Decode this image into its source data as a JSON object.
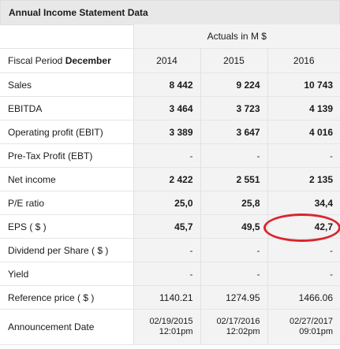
{
  "title": "Annual Income Statement Data",
  "actuals_label": "Actuals in M $",
  "fiscal_label_prefix": "Fiscal Period",
  "fiscal_label_month": "December",
  "years": [
    "2014",
    "2015",
    "2016"
  ],
  "rows": [
    {
      "label": "Sales",
      "values": [
        "8 442",
        "9 224",
        "10 743"
      ]
    },
    {
      "label": "EBITDA",
      "values": [
        "3 464",
        "3 723",
        "4 139"
      ]
    },
    {
      "label": "Operating profit (EBIT)",
      "values": [
        "3 389",
        "3 647",
        "4 016"
      ]
    },
    {
      "label": "Pre-Tax Profit (EBT)",
      "values": [
        "-",
        "-",
        "-"
      ]
    },
    {
      "label": "Net income",
      "values": [
        "2 422",
        "2 551",
        "2 135"
      ]
    },
    {
      "label": "P/E ratio",
      "values": [
        "25,0",
        "25,8",
        "34,4"
      ]
    },
    {
      "label": "EPS ( $ )",
      "values": [
        "45,7",
        "49,5",
        "42,7"
      ]
    },
    {
      "label": "Dividend per Share ( $ )",
      "values": [
        "-",
        "-",
        "-"
      ]
    },
    {
      "label": "Yield",
      "values": [
        "-",
        "-",
        "-"
      ]
    },
    {
      "label": "Reference price ( $ )",
      "values": [
        "1140.21",
        "1274.95",
        "1466.06"
      ]
    }
  ],
  "announcement": {
    "label": "Announcement Date",
    "dates": [
      {
        "date": "02/19/2015",
        "time": "12:01pm"
      },
      {
        "date": "02/17/2016",
        "time": "12:02pm"
      },
      {
        "date": "02/27/2017",
        "time": "09:01pm"
      }
    ]
  },
  "highlight_color": "#d9262e"
}
